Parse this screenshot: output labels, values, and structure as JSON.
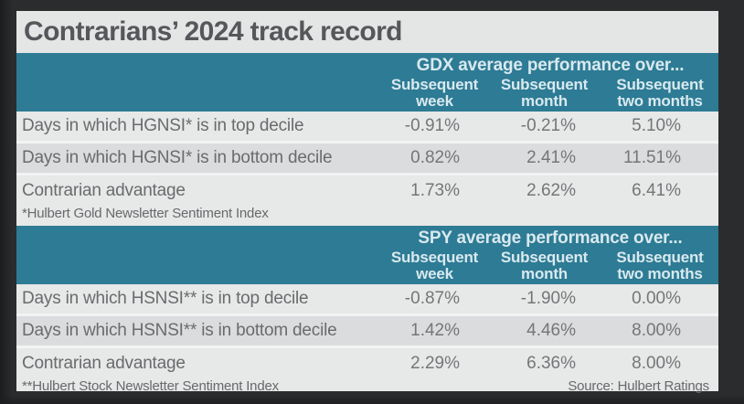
{
  "title": "Contrarians’ 2024 track record",
  "colors": {
    "teal_header": "#2d7b94",
    "header_text": "#d9e9ef",
    "row_light": "#e7e8e8",
    "row_dark": "#dbdcdd",
    "title_text": "#55575a",
    "body_text": "#696b6d",
    "frame_background": "#2b2c2e"
  },
  "sections": [
    {
      "header": "GDX average performance over...",
      "columns": [
        "Subsequent week",
        "Subsequent month",
        "Subsequent two months"
      ],
      "rows": [
        {
          "label": "Days in which HGNSI* is in top decile",
          "values": [
            "-0.91%",
            "-0.21%",
            "5.10%"
          ]
        },
        {
          "label": "Days in which HGNSI* is in bottom decile",
          "values": [
            "0.82%",
            "2.41%",
            "11.51%"
          ]
        },
        {
          "label": "Contrarian advantage",
          "values": [
            "1.73%",
            "2.62%",
            "6.41%"
          ]
        }
      ],
      "footnote": "*Hulbert Gold Newsletter Sentiment Index",
      "source": ""
    },
    {
      "header": "SPY average performance over...",
      "columns": [
        "Subsequent week",
        "Subsequent month",
        "Subsequent two months"
      ],
      "rows": [
        {
          "label": "Days in which HSNSI** is in top decile",
          "values": [
            "-0.87%",
            "-1.90%",
            "0.00%"
          ]
        },
        {
          "label": "Days in which HSNSI** is in bottom decile",
          "values": [
            "1.42%",
            "4.46%",
            "8.00%"
          ]
        },
        {
          "label": "Contrarian advantage",
          "values": [
            "2.29%",
            "6.36%",
            "8.00%"
          ]
        }
      ],
      "footnote": "**Hulbert Stock Newsletter Sentiment Index",
      "source": "Source: Hulbert Ratings"
    }
  ],
  "chart_data": [
    {
      "type": "table",
      "title": "GDX average performance over...",
      "columns": [
        "",
        "Subsequent week",
        "Subsequent month",
        "Subsequent two months"
      ],
      "rows": [
        [
          "Days in which HGNSI* is in top decile",
          -0.91,
          -0.21,
          5.1
        ],
        [
          "Days in which HGNSI* is in bottom decile",
          0.82,
          2.41,
          11.51
        ],
        [
          "Contrarian advantage",
          1.73,
          2.62,
          6.41
        ]
      ],
      "units": "percent",
      "footnote": "*Hulbert Gold Newsletter Sentiment Index"
    },
    {
      "type": "table",
      "title": "SPY average performance over...",
      "columns": [
        "",
        "Subsequent week",
        "Subsequent month",
        "Subsequent two months"
      ],
      "rows": [
        [
          "Days in which HSNSI** is in top decile",
          -0.87,
          -1.9,
          0.0
        ],
        [
          "Days in which HSNSI** is in bottom decile",
          1.42,
          4.46,
          8.0
        ],
        [
          "Contrarian advantage",
          2.29,
          6.36,
          8.0
        ]
      ],
      "units": "percent",
      "footnote": "**Hulbert Stock Newsletter Sentiment Index",
      "source": "Source: Hulbert Ratings"
    }
  ]
}
